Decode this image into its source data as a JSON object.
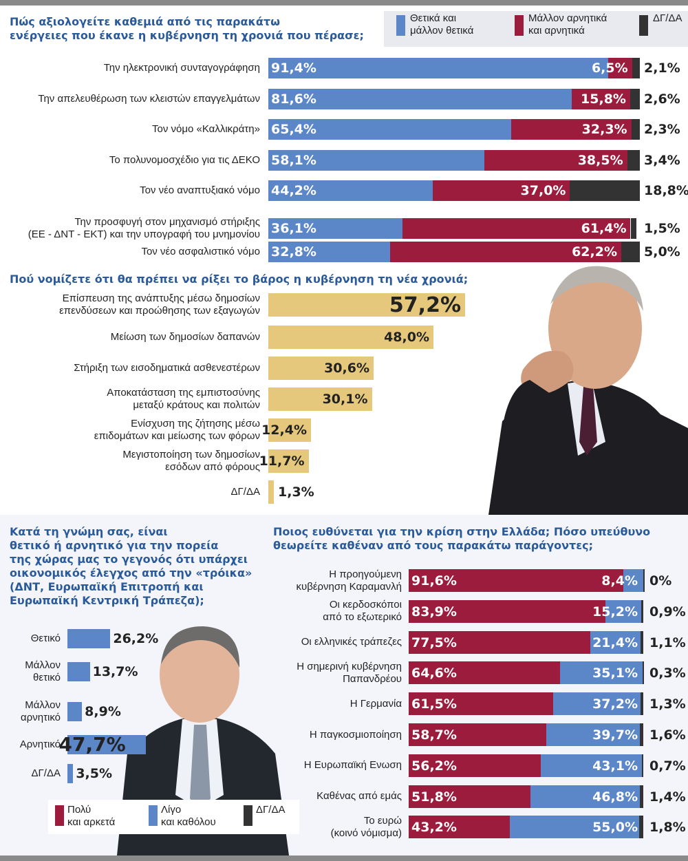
{
  "colors": {
    "positive": "#5b86c7",
    "negative": "#9b1c3c",
    "dk": "#333333",
    "gold": "#e5c87b",
    "title": "#2a5a9a",
    "panel_bg": "#f3f5fa"
  },
  "chart_data": [
    {
      "type": "bar",
      "stacked": true,
      "orientation": "horizontal",
      "title": "Πώς αξιολογείτε καθεμιά από τις παρακάτω ενέργειες που έκανε η κυβέρνηση τη χρονιά που πέρασε;",
      "title_lines": [
        "Πώς αξιολογείτε καθεμιά από τις παρακάτω",
        "ενέργειες που έκανε η κυβέρνηση τη χρονιά που πέρασε;"
      ],
      "legend_placement": "top-right",
      "categories": [
        [
          "Την ηλεκτρονική συνταγογράφηση"
        ],
        [
          "Την απελευθέρωση των κλειστών επαγγελμάτων"
        ],
        [
          "Τον νόμο «Καλλικράτη»"
        ],
        [
          "Το πολυνομοσχέδιο για τις ΔΕΚΟ"
        ],
        [
          "Τον νέο αναπτυξιακό νόμο"
        ],
        [
          "Την προσφυγή στον μηχανισμό στήριξης",
          "(ΕΕ - ΔΝΤ - ΕΚΤ) και την υπογραφή του μνημονίου"
        ],
        [
          "Τον νέο ασφαλιστικό νόμο"
        ]
      ],
      "series": [
        {
          "name": "Θετικά και μάλλον θετικά",
          "name_lines": [
            "Θετικά και",
            "μάλλον θετικά"
          ],
          "color": "#5b86c7",
          "values": [
            91.4,
            81.6,
            65.4,
            58.1,
            44.2,
            36.1,
            32.8
          ],
          "labels": [
            "91,4%",
            "81,6%",
            "65,4%",
            "58,1%",
            "44,2%",
            "36,1%",
            "32,8%"
          ]
        },
        {
          "name": "Μάλλον αρνητικά και αρνητικά",
          "name_lines": [
            "Μάλλον αρνητικά",
            "και αρνητικά"
          ],
          "color": "#9b1c3c",
          "values": [
            6.5,
            15.8,
            32.3,
            38.5,
            37.0,
            61.4,
            62.2
          ],
          "labels": [
            "6,5%",
            "15,8%",
            "32,3%",
            "38,5%",
            "37,0%",
            "61,4%",
            "62,2%"
          ]
        },
        {
          "name": "ΔΓ/ΔΑ",
          "name_lines": [
            "ΔΓ/ΔΑ"
          ],
          "color": "#333333",
          "values": [
            2.1,
            2.6,
            2.3,
            3.4,
            18.8,
            1.5,
            5.0
          ],
          "labels": [
            "2,1%",
            "2,6%",
            "2,3%",
            "3,4%",
            "18,8%",
            "1,5%",
            "5,0%"
          ]
        }
      ],
      "xlim": [
        0,
        100
      ]
    },
    {
      "type": "bar",
      "orientation": "horizontal",
      "title": "Πού νομίζετε ότι θα πρέπει να ρίξει το βάρος η κυβέρνηση τη νέα χρονιά;",
      "title_lines": [
        "Πού νομίζετε ότι θα πρέπει να ρίξει το βάρος η κυβέρνηση τη νέα χρονιά;"
      ],
      "categories": [
        [
          "Επίσπευση της ανάπτυξης μέσω δημοσίων",
          "επενδύσεων και προώθησης των εξαγωγών"
        ],
        [
          "Μείωση των δημοσίων δαπανών"
        ],
        [
          "Στήριξη των εισοδηματικά ασθενεστέρων"
        ],
        [
          "Αποκατάσταση της εμπιστοσύνης",
          "μεταξύ κράτους και πολιτών"
        ],
        [
          "Ενίσχυση της ζήτησης μέσω",
          "επιδομάτων και μείωσης των φόρων"
        ],
        [
          "Μεγιστοποίηση των δημοσίων",
          "εσόδων από φόρους"
        ],
        [
          "ΔΓ/ΔΑ"
        ]
      ],
      "values": [
        57.2,
        48.0,
        30.6,
        30.1,
        12.4,
        11.7,
        1.3
      ],
      "labels": [
        "57,2%",
        "48,0%",
        "30,6%",
        "30,1%",
        "12,4%",
        "11,7%",
        "1,3%"
      ],
      "color": "#e5c87b"
    },
    {
      "type": "bar",
      "orientation": "horizontal",
      "title": "Κατά τη γνώμη σας, είναι θετικό ή αρνητικό για την πορεία της χώρας μας το γεγονός ότι υπάρχει οικονομικός έλεγχος από την «τρόικα» (ΔΝΤ, Ευρωπαϊκή Επιτροπή και Ευρωπαϊκή Κεντρική Τράπεζα);",
      "title_lines": [
        "Κατά τη γνώμη σας, είναι",
        "θετικό ή αρνητικό για την πορεία",
        "της χώρας μας το γεγονός ότι υπάρχει",
        "οικονομικός έλεγχος από την «τρόικα»",
        "(ΔΝΤ, Ευρωπαϊκή Επιτροπή και",
        "Ευρωπαϊκή Κεντρική Τράπεζα);"
      ],
      "categories": [
        [
          "Θετικό"
        ],
        [
          "Μάλλον",
          "θετικό"
        ],
        [
          "Μάλλον",
          "αρνητικό"
        ],
        [
          "Αρνητικό"
        ],
        [
          "ΔΓ/ΔΑ"
        ]
      ],
      "values": [
        26.2,
        13.7,
        8.9,
        47.7,
        3.5
      ],
      "labels": [
        "26,2%",
        "13,7%",
        "8,9%",
        "47,7%",
        "3,5%"
      ],
      "color": "#5b86c7"
    },
    {
      "type": "bar",
      "stacked": true,
      "orientation": "horizontal",
      "title": "Ποιος ευθύνεται για την κρίση στην Ελλάδα; Πόσο υπεύθυνο θεωρείτε καθέναν από τους παρακάτω παράγοντες;",
      "title_lines": [
        "Ποιος ευθύνεται για την κρίση στην Ελλάδα; Πόσο υπεύθυνο",
        "θεωρείτε καθέναν από τους παρακάτω παράγοντες;"
      ],
      "legend_placement": "bottom-left",
      "categories": [
        [
          "Η προηγούμενη",
          "κυβέρνηση Καραμανλή"
        ],
        [
          "Οι κερδοσκόποι",
          "από το εξωτερικό"
        ],
        [
          "Οι ελληνικές τράπεζες"
        ],
        [
          "Η σημερινή κυβέρνηση",
          "Παπανδρέου"
        ],
        [
          "Η Γερμανία"
        ],
        [
          "Η παγκοσμιοποίηση"
        ],
        [
          "Η Ευρωπαϊκή Ενωση"
        ],
        [
          "Καθένας από εμάς"
        ],
        [
          "Το ευρώ",
          "(κοινό νόμισμα)"
        ]
      ],
      "series": [
        {
          "name": "Πολύ και αρκετά",
          "name_lines": [
            "Πολύ",
            "και αρκετά"
          ],
          "color": "#9b1c3c",
          "values": [
            91.6,
            83.9,
            77.5,
            64.6,
            61.5,
            58.7,
            56.2,
            51.8,
            43.2
          ],
          "labels": [
            "91,6%",
            "83,9%",
            "77,5%",
            "64,6%",
            "61,5%",
            "58,7%",
            "56,2%",
            "51,8%",
            "43,2%"
          ]
        },
        {
          "name": "Λίγο και καθόλου",
          "name_lines": [
            "Λίγο",
            "και καθόλου"
          ],
          "color": "#5b86c7",
          "values": [
            8.4,
            15.2,
            21.4,
            35.1,
            37.2,
            39.7,
            43.1,
            46.8,
            55.0
          ],
          "labels": [
            "8,4%",
            "15,2%",
            "21,4%",
            "35,1%",
            "37,2%",
            "39,7%",
            "43,1%",
            "46,8%",
            "55,0%"
          ]
        },
        {
          "name": "ΔΓ/ΔΑ",
          "name_lines": [
            "ΔΓ/ΔΑ"
          ],
          "color": "#333333",
          "values": [
            0,
            0.9,
            1.1,
            0.3,
            1.3,
            1.6,
            0.7,
            1.4,
            1.8
          ],
          "labels": [
            "0%",
            "0,9%",
            "1,1%",
            "0,3%",
            "1,3%",
            "1,6%",
            "0,7%",
            "1,4%",
            "1,8%"
          ]
        }
      ],
      "xlim": [
        0,
        100
      ]
    }
  ]
}
